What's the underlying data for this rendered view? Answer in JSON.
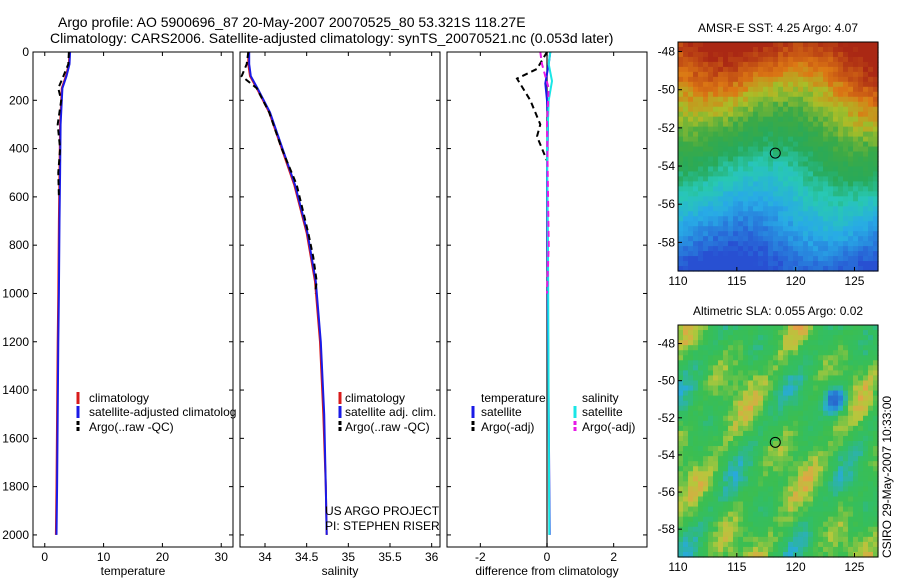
{
  "header": {
    "line1": "Argo profile: AO 5900696_87 20-May-2007 20070525_80 53.321S 118.27E",
    "line2": "Climatology: CARS2006. Satellite-adjusted climatology: synTS_20070521.nc (0.053d later)"
  },
  "colors": {
    "clim": "#d81b1b",
    "sat": "#1a1ae6",
    "argo": "#000000",
    "sat_diff_s": "#19e6e6",
    "argo_diff_s": "#e619e6"
  },
  "chart_data": [
    {
      "type": "line",
      "name": "temperature",
      "xlabel": "temperature",
      "xlim": [
        -2,
        32
      ],
      "ylim": [
        2050,
        0
      ],
      "xticks": [
        0,
        10,
        20,
        30
      ],
      "yticks": [
        0,
        200,
        400,
        600,
        800,
        1000,
        1200,
        1400,
        1600,
        1800,
        2000
      ],
      "series": [
        {
          "name": "climatology",
          "color": "#d81b1b",
          "dash": "",
          "x": [
            4.2,
            4.1,
            3.6,
            2.9,
            2.6,
            2.5,
            2.4,
            2.3,
            2.2,
            2.1,
            2.0,
            1.9
          ],
          "y": [
            0,
            50,
            100,
            150,
            300,
            500,
            700,
            1000,
            1200,
            1500,
            1800,
            2000
          ]
        },
        {
          "name": "satellite-adjusted climatology",
          "color": "#1a1ae6",
          "dash": "",
          "x": [
            4.3,
            4.2,
            3.7,
            3.0,
            2.7,
            2.6,
            2.5,
            2.4,
            2.3,
            2.2,
            2.1,
            2.0
          ],
          "y": [
            0,
            50,
            100,
            150,
            300,
            500,
            700,
            1000,
            1200,
            1500,
            1800,
            2000
          ]
        },
        {
          "name": "Argo(..raw -QC)",
          "color": "#000000",
          "dash": "6,4",
          "x": [
            4.1,
            4.0,
            3.0,
            2.3,
            2.8,
            2.2,
            2.6,
            2.3,
            2.4
          ],
          "y": [
            0,
            50,
            110,
            150,
            200,
            300,
            400,
            500,
            600
          ]
        }
      ],
      "legend": [
        "climatology",
        "satellite-adjusted climatolog",
        "Argo(..raw -QC)"
      ]
    },
    {
      "type": "line",
      "name": "salinity",
      "xlabel": "salinity",
      "xlim": [
        33.7,
        36.1
      ],
      "ylim": [
        2050,
        0
      ],
      "xticks": [
        34,
        34.5,
        35,
        35.5,
        36
      ],
      "yticks": [
        0,
        200,
        400,
        600,
        800,
        1000,
        1200,
        1400,
        1600,
        1800,
        2000
      ],
      "series": [
        {
          "name": "climatology",
          "color": "#d81b1b",
          "dash": "",
          "x": [
            33.8,
            33.8,
            33.82,
            33.9,
            34.05,
            34.2,
            34.35,
            34.5,
            34.6,
            34.66,
            34.7,
            34.73,
            34.74
          ],
          "y": [
            0,
            50,
            100,
            150,
            250,
            400,
            550,
            750,
            950,
            1200,
            1500,
            1800,
            2000
          ]
        },
        {
          "name": "satellite adj. clim.",
          "color": "#1a1ae6",
          "dash": "",
          "x": [
            33.81,
            33.81,
            33.83,
            33.91,
            34.06,
            34.21,
            34.36,
            34.51,
            34.61,
            34.67,
            34.71,
            34.73,
            34.74
          ],
          "y": [
            0,
            50,
            100,
            150,
            250,
            400,
            550,
            750,
            950,
            1200,
            1500,
            1800,
            2000
          ]
        },
        {
          "name": "Argo(..raw -QC)",
          "color": "#000000",
          "dash": "6,4",
          "x": [
            33.8,
            33.78,
            33.72,
            33.9,
            34.05,
            34.2,
            34.38,
            34.52,
            34.58,
            34.62,
            34.6
          ],
          "y": [
            0,
            50,
            100,
            150,
            250,
            400,
            550,
            750,
            850,
            950,
            1000
          ]
        }
      ],
      "legend": [
        "climatology",
        "satellite adj. clim.",
        "Argo(..raw -QC)"
      ],
      "annotations": [
        "US ARGO PROJECT",
        "PI: STEPHEN RISER"
      ]
    },
    {
      "type": "line",
      "name": "difference",
      "xlabel": "difference from climatology",
      "xlim": [
        -3,
        3
      ],
      "ylim": [
        2050,
        0
      ],
      "xticks": [
        -2,
        0,
        2
      ],
      "yticks": [
        0,
        200,
        400,
        600,
        800,
        1000,
        1200,
        1400,
        1600,
        1800,
        2000
      ],
      "series": [
        {
          "name": "temperature satellite",
          "color": "#1a1ae6",
          "dash": "",
          "x": [
            0.1,
            0.05,
            -0.05,
            0.0,
            0.03,
            0.0,
            0.02,
            0.05,
            0.08
          ],
          "y": [
            0,
            50,
            130,
            200,
            300,
            500,
            1000,
            1500,
            2000
          ]
        },
        {
          "name": "temperature Argo(-adj)",
          "color": "#000000",
          "dash": "6,4",
          "x": [
            0.0,
            -0.3,
            -0.9,
            -0.5,
            -0.2,
            -0.3,
            0.0
          ],
          "y": [
            0,
            70,
            110,
            200,
            300,
            350,
            450
          ]
        },
        {
          "name": "salinity satellite",
          "color": "#19e6e6",
          "dash": "",
          "x": [
            0.1,
            0.05,
            0.15,
            0.05,
            0.0,
            0.03,
            0.05,
            0.07
          ],
          "y": [
            0,
            50,
            120,
            200,
            400,
            800,
            1500,
            2000
          ]
        },
        {
          "name": "salinity Argo(-adj)",
          "color": "#e619e6",
          "dash": "6,4",
          "x": [
            -0.2,
            -0.15,
            0.05,
            0.0,
            0.02,
            0.05,
            0.0
          ],
          "y": [
            0,
            50,
            150,
            300,
            500,
            800,
            1000
          ]
        }
      ],
      "legend_headers": [
        "temperature",
        "salinity"
      ],
      "legend": [
        "satellite",
        "Argo(-adj)",
        "satellite",
        "Argo(-adj)"
      ]
    },
    {
      "type": "heatmap",
      "name": "sst",
      "title": "AMSR-E SST: 4.25 Argo: 4.07",
      "xlim": [
        110,
        127
      ],
      "ylim": [
        -59.5,
        -47.5
      ],
      "xticks": [
        110,
        115,
        120,
        125
      ],
      "yticks": [
        -48,
        -50,
        -52,
        -54,
        -56,
        -58
      ],
      "marker": [
        118.27,
        -53.321
      ]
    },
    {
      "type": "heatmap",
      "name": "sla",
      "title": "Altimetric SLA: 0.055 Argo: 0.02",
      "xlim": [
        110,
        127
      ],
      "ylim": [
        -59.5,
        -47
      ],
      "xticks": [
        110,
        115,
        120,
        125
      ],
      "yticks": [
        -48,
        -50,
        -52,
        -54,
        -56,
        -58
      ],
      "marker": [
        118.27,
        -53.321
      ]
    }
  ],
  "footer": {
    "credit": "CSIRO 29-May-2007 10:33:00"
  }
}
